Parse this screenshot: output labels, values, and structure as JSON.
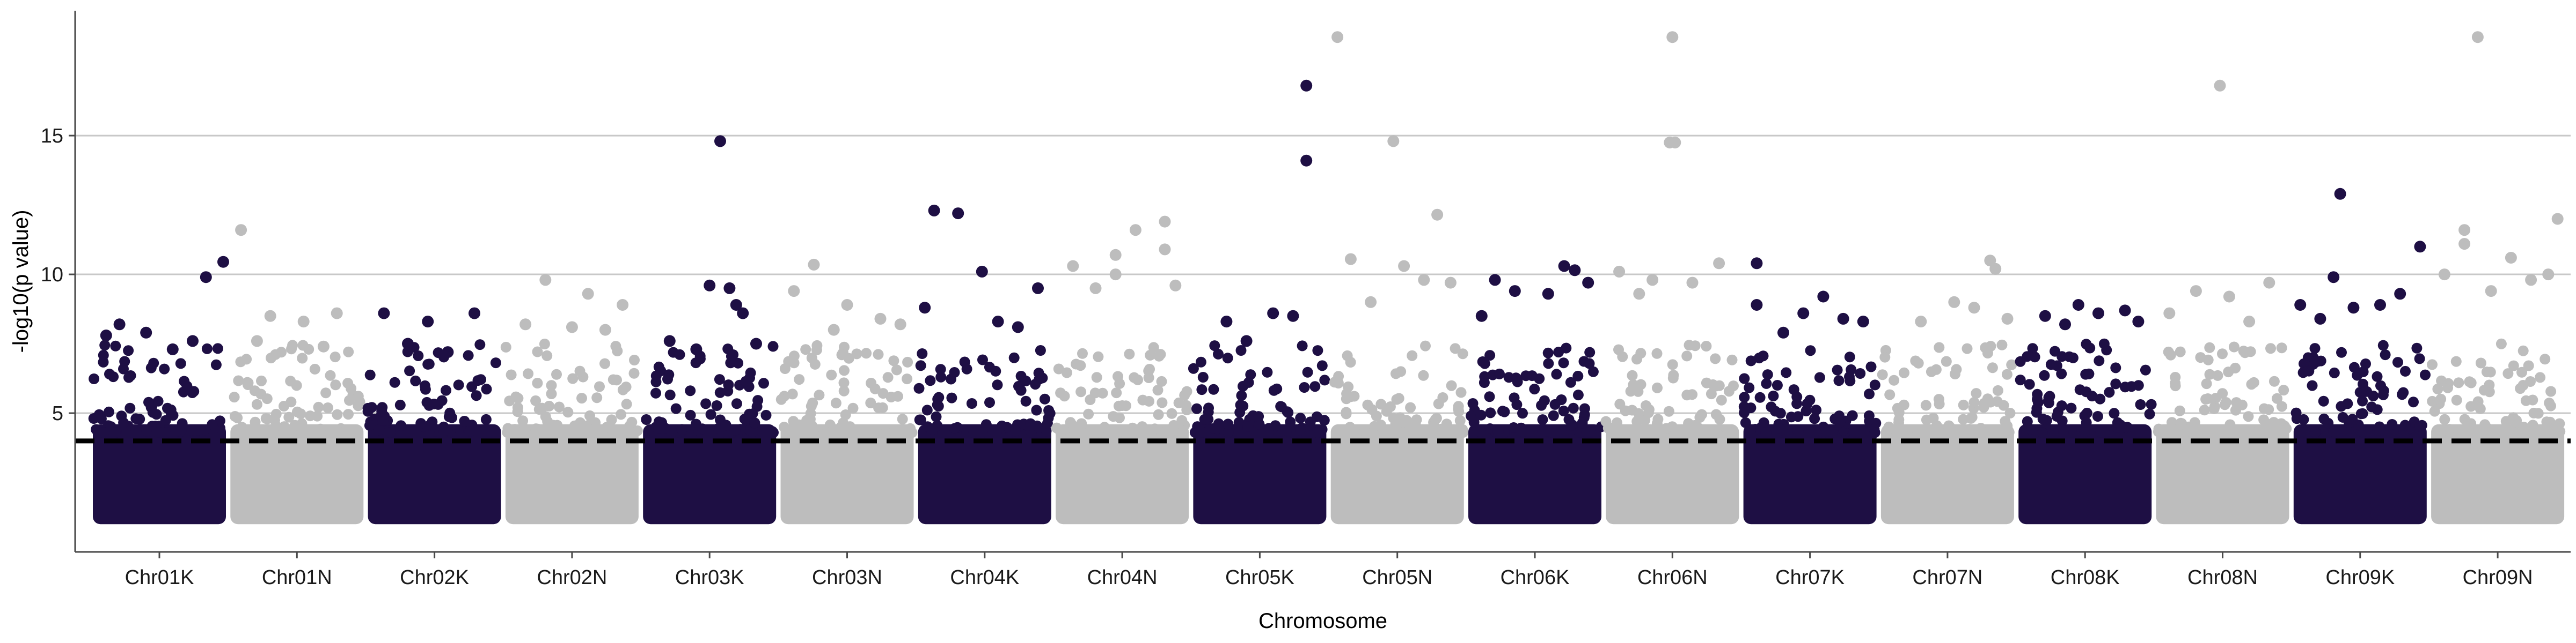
{
  "chart_data": {
    "type": "scatter",
    "title": "",
    "xlabel": "Chromosome",
    "ylabel": "-log10(p value)",
    "ylim": [
      0,
      19.5
    ],
    "yticks": [
      5,
      10,
      15
    ],
    "grid": "horizontal major lines at y-ticks",
    "significance_threshold": 4,
    "categories": [
      "Chr01K",
      "Chr01N",
      "Chr02K",
      "Chr02N",
      "Chr03K",
      "Chr03N",
      "Chr04K",
      "Chr04N",
      "Chr05K",
      "Chr05N",
      "Chr06K",
      "Chr06N",
      "Chr07K",
      "Chr07N",
      "Chr08K",
      "Chr08N",
      "Chr09K",
      "Chr09N"
    ],
    "colors": {
      "K": "#1e0f44",
      "N": "#bdbdbd",
      "threshold": "#000000",
      "grid": "#c8c8c8",
      "axis": "#4a4a4a"
    },
    "bulk_range": [
      1.0,
      4.0
    ],
    "series": [
      {
        "chromosome": "Chr01K",
        "points": [
          [
            0.85,
            9.9
          ],
          [
            0.98,
            10.45
          ],
          [
            0.2,
            8.2
          ],
          [
            0.4,
            7.9
          ],
          [
            0.6,
            7.3
          ],
          [
            0.75,
            7.6
          ],
          [
            0.1,
            7.8
          ]
        ]
      },
      {
        "chromosome": "Chr01N",
        "points": [
          [
            0.08,
            11.6
          ],
          [
            0.3,
            8.5
          ],
          [
            0.55,
            8.3
          ],
          [
            0.8,
            8.6
          ],
          [
            0.2,
            7.6
          ],
          [
            0.7,
            7.4
          ]
        ]
      },
      {
        "chromosome": "Chr02K",
        "points": [
          [
            0.12,
            8.6
          ],
          [
            0.45,
            8.3
          ],
          [
            0.8,
            8.6
          ],
          [
            0.3,
            7.5
          ],
          [
            0.6,
            7.2
          ]
        ]
      },
      {
        "chromosome": "Chr02N",
        "points": [
          [
            0.3,
            9.8
          ],
          [
            0.62,
            9.3
          ],
          [
            0.88,
            8.9
          ],
          [
            0.15,
            8.2
          ],
          [
            0.5,
            8.1
          ],
          [
            0.75,
            8.0
          ]
        ]
      },
      {
        "chromosome": "Chr03K",
        "points": [
          [
            0.58,
            14.8
          ],
          [
            0.5,
            9.6
          ],
          [
            0.65,
            9.5
          ],
          [
            0.75,
            8.6
          ],
          [
            0.7,
            8.9
          ],
          [
            0.2,
            7.6
          ],
          [
            0.4,
            7.3
          ],
          [
            0.85,
            7.5
          ]
        ]
      },
      {
        "chromosome": "Chr03N",
        "points": [
          [
            0.25,
            10.35
          ],
          [
            0.1,
            9.4
          ],
          [
            0.5,
            8.9
          ],
          [
            0.75,
            8.4
          ],
          [
            0.4,
            8.0
          ],
          [
            0.9,
            8.2
          ]
        ]
      },
      {
        "chromosome": "Chr04K",
        "points": [
          [
            0.12,
            12.3
          ],
          [
            0.3,
            12.2
          ],
          [
            0.48,
            10.1
          ],
          [
            0.9,
            9.5
          ],
          [
            0.05,
            8.8
          ],
          [
            0.6,
            8.3
          ],
          [
            0.75,
            8.1
          ]
        ]
      },
      {
        "chromosome": "Chr04N",
        "points": [
          [
            0.13,
            10.3
          ],
          [
            0.45,
            10.0
          ],
          [
            0.45,
            10.7
          ],
          [
            0.6,
            11.6
          ],
          [
            0.82,
            11.9
          ],
          [
            0.82,
            10.9
          ],
          [
            0.9,
            9.6
          ],
          [
            0.3,
            9.5
          ]
        ]
      },
      {
        "chromosome": "Chr05K",
        "points": [
          [
            0.85,
            16.8
          ],
          [
            0.85,
            14.1
          ],
          [
            0.25,
            8.3
          ],
          [
            0.6,
            8.6
          ],
          [
            0.75,
            8.5
          ],
          [
            0.4,
            7.6
          ]
        ]
      },
      {
        "chromosome": "Chr05N",
        "points": [
          [
            0.05,
            18.55
          ],
          [
            0.47,
            14.8
          ],
          [
            0.15,
            10.55
          ],
          [
            0.8,
            12.15
          ],
          [
            0.55,
            10.3
          ],
          [
            0.7,
            9.8
          ],
          [
            0.9,
            9.7
          ],
          [
            0.3,
            9.0
          ]
        ]
      },
      {
        "chromosome": "Chr06K",
        "points": [
          [
            0.2,
            9.8
          ],
          [
            0.35,
            9.4
          ],
          [
            0.72,
            10.3
          ],
          [
            0.8,
            10.15
          ],
          [
            0.9,
            9.7
          ],
          [
            0.6,
            9.3
          ],
          [
            0.1,
            8.5
          ]
        ]
      },
      {
        "chromosome": "Chr06N",
        "points": [
          [
            0.5,
            18.55
          ],
          [
            0.48,
            14.75
          ],
          [
            0.52,
            14.75
          ],
          [
            0.1,
            10.1
          ],
          [
            0.35,
            9.8
          ],
          [
            0.65,
            9.7
          ],
          [
            0.85,
            10.4
          ],
          [
            0.25,
            9.3
          ]
        ]
      },
      {
        "chromosome": "Chr07K",
        "points": [
          [
            0.1,
            10.4
          ],
          [
            0.1,
            8.9
          ],
          [
            0.3,
            7.9
          ],
          [
            0.45,
            8.6
          ],
          [
            0.6,
            9.2
          ],
          [
            0.75,
            8.4
          ],
          [
            0.9,
            8.3
          ]
        ]
      },
      {
        "chromosome": "Chr07N",
        "points": [
          [
            0.82,
            10.5
          ],
          [
            0.86,
            10.2
          ],
          [
            0.55,
            9.0
          ],
          [
            0.3,
            8.3
          ],
          [
            0.7,
            8.8
          ],
          [
            0.95,
            8.4
          ]
        ]
      },
      {
        "chromosome": "Chr08K",
        "points": [
          [
            0.45,
            8.9
          ],
          [
            0.2,
            8.5
          ],
          [
            0.6,
            8.6
          ],
          [
            0.8,
            8.7
          ],
          [
            0.35,
            8.2
          ],
          [
            0.9,
            8.3
          ]
        ]
      },
      {
        "chromosome": "Chr08N",
        "points": [
          [
            0.48,
            16.8
          ],
          [
            0.1,
            8.6
          ],
          [
            0.3,
            9.4
          ],
          [
            0.55,
            9.2
          ],
          [
            0.85,
            9.7
          ],
          [
            0.7,
            8.3
          ]
        ]
      },
      {
        "chromosome": "Chr09K",
        "points": [
          [
            0.35,
            12.9
          ],
          [
            0.3,
            9.9
          ],
          [
            0.95,
            11.0
          ],
          [
            0.05,
            8.9
          ],
          [
            0.45,
            8.8
          ],
          [
            0.65,
            8.9
          ],
          [
            0.8,
            9.3
          ],
          [
            0.2,
            8.4
          ]
        ]
      },
      {
        "chromosome": "Chr09N",
        "points": [
          [
            0.35,
            18.55
          ],
          [
            0.25,
            11.6
          ],
          [
            0.25,
            11.1
          ],
          [
            0.95,
            12.0
          ],
          [
            0.6,
            10.6
          ],
          [
            0.75,
            9.8
          ],
          [
            0.88,
            10.0
          ],
          [
            0.1,
            10.0
          ],
          [
            0.45,
            9.4
          ]
        ]
      }
    ]
  }
}
